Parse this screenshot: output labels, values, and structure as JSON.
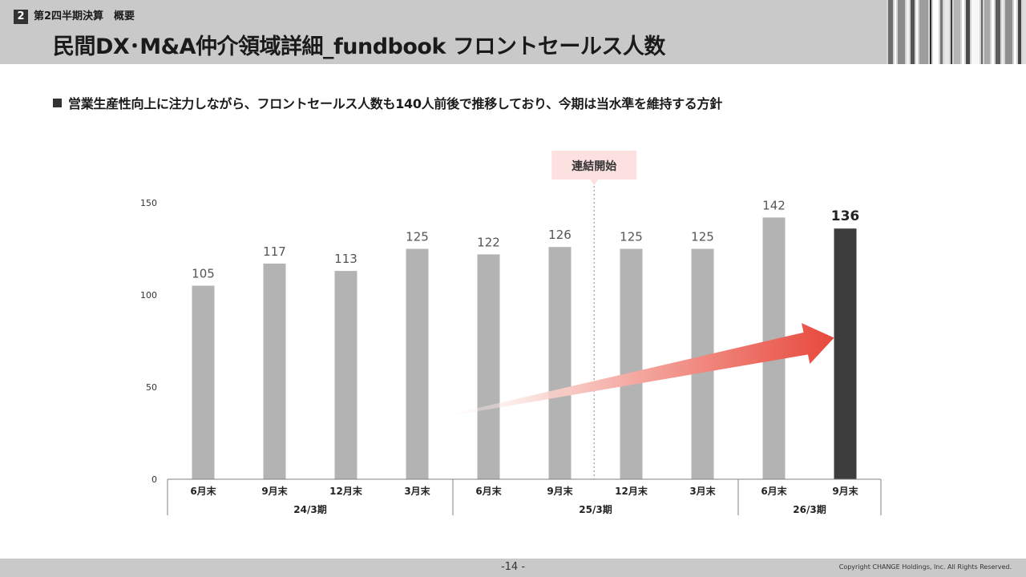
{
  "header": {
    "section_number": "2",
    "section_label": "第2四半期決算　概要",
    "title": "民間DX･M&A仲介領域詳細_fundbook フロントセールス人数"
  },
  "lead_text": "営業生産性向上に注力しながら、フロントセールス人数も140人前後で推移しており、今期は当水準を維持する方針",
  "callout": "連結開始",
  "footer": {
    "page_number": "-14 -",
    "copyright": "Copyright CHANGE Holdings, Inc. All Rights Reserved."
  },
  "colors": {
    "header_bg": "#c8c9c8",
    "bar_past": "#b3b3b3",
    "bar_current": "#3d3d3d",
    "arrow": "#e8483c",
    "callout_bg": "#fbe1df"
  },
  "chart_data": {
    "type": "bar",
    "categories": [
      "6月末",
      "9月末",
      "12月末",
      "3月末",
      "6月末",
      "9月末",
      "12月末",
      "3月末",
      "6月末",
      "9月末"
    ],
    "values": [
      105,
      117,
      113,
      125,
      122,
      126,
      125,
      125,
      142,
      136
    ],
    "highlight_index": 9,
    "groups": [
      {
        "label": "24/3期",
        "start": 0,
        "end": 3
      },
      {
        "label": "25/3期",
        "start": 4,
        "end": 7
      },
      {
        "label": "26/3期",
        "start": 8,
        "end": 9
      }
    ],
    "ylim": [
      0,
      150
    ],
    "yticks": [
      0,
      50,
      100,
      150
    ],
    "grid": false,
    "marker_between": [
      5,
      6
    ],
    "trend_arrow": {
      "from_index": 3.5,
      "to_index": 9,
      "from_value": 45,
      "to_value": 75
    }
  }
}
